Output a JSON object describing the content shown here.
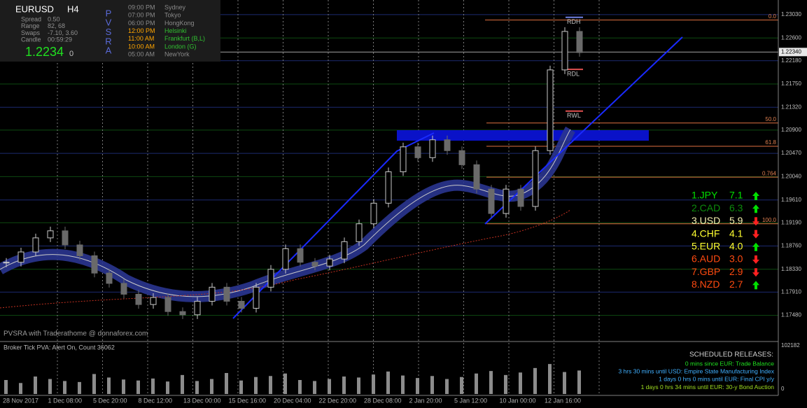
{
  "header": {
    "symbol": "EURUSD",
    "timeframe": "H4",
    "rows": [
      [
        "Spread",
        "0.50"
      ],
      [
        "Range",
        "82, 68"
      ],
      [
        "Swaps",
        "-7.10, 3.60"
      ],
      [
        "Candle",
        "00:59:29"
      ]
    ],
    "price": "1.2234",
    "price_suffix": "0"
  },
  "indicator_letters": [
    "P",
    "V",
    "S",
    "R",
    "A"
  ],
  "sessions": [
    {
      "time": "09:00 PM",
      "city": "Sydney",
      "active": false
    },
    {
      "time": "07:00 PM",
      "city": "Tokyo",
      "active": false
    },
    {
      "time": "06:00 PM",
      "city": "HongKong",
      "active": false
    },
    {
      "time": "12:00 PM",
      "city": "Helsinki",
      "active": true
    },
    {
      "time": "11:00 AM",
      "city": "Frankfurt  (B,L)",
      "active": true
    },
    {
      "time": "10:00 AM",
      "city": "London  (G)",
      "active": true
    },
    {
      "time": "05:00 AM",
      "city": "NewYork",
      "active": false
    }
  ],
  "chart_data": {
    "type": "candlestick",
    "up_color": "#c8c8c8",
    "down_color": "#6a6a6a",
    "values": [
      1.1846,
      1.1865,
      1.1891,
      1.1904,
      1.1878,
      1.1858,
      1.1826,
      1.1807,
      1.1787,
      1.1768,
      1.1781,
      1.1755,
      1.1749,
      1.1774,
      1.18,
      1.1774,
      1.1761,
      1.18,
      1.1833,
      1.1871,
      1.1846,
      1.1839,
      1.1852,
      1.1884,
      1.1917,
      1.1955,
      1.2013,
      1.2059,
      1.2039,
      1.2072,
      1.2052,
      1.2026,
      1.1981,
      1.1936,
      1.1981,
      1.1949,
      1.2052,
      1.2201,
      1.2272,
      1.2233
    ],
    "ylim": [
      1.1701,
      1.233
    ],
    "yticks": [
      {
        "value": 1.2303,
        "label": "1.23030"
      },
      {
        "value": 1.226,
        "label": "1.22600"
      },
      {
        "value": 1.2218,
        "label": "1.22180"
      },
      {
        "value": 1.2175,
        "label": "1.21750"
      },
      {
        "value": 1.2132,
        "label": "1.21320"
      },
      {
        "value": 1.209,
        "label": "1.20900"
      },
      {
        "value": 1.2047,
        "label": "1.20470"
      },
      {
        "value": 1.2004,
        "label": "1.20040"
      },
      {
        "value": 1.1961,
        "label": "1.19610"
      },
      {
        "value": 1.1919,
        "label": "1.19190"
      },
      {
        "value": 1.1876,
        "label": "1.18760"
      },
      {
        "value": 1.1833,
        "label": "1.18330"
      },
      {
        "value": 1.1791,
        "label": "1.17910"
      },
      {
        "value": 1.1748,
        "label": "1.17480"
      }
    ],
    "current_price": {
      "value": 1.2234,
      "label": "1.22340"
    },
    "xtick_labels": [
      "28 Nov 2017",
      "1 Dec 08:00",
      "5 Dec 20:00",
      "8 Dec 12:00",
      "13 Dec 00:00",
      "15 Dec 16:00",
      "20 Dec 04:00",
      "22 Dec 20:00",
      "28 Dec 08:00",
      "2 Jan 20:00",
      "5 Jan 12:00",
      "10 Jan 00:00",
      "12 Jan 16:00"
    ],
    "fib_levels": [
      {
        "label": "0.0",
        "price": 1.2293
      },
      {
        "label": "50.0",
        "price": 1.2103
      },
      {
        "label": "61.8",
        "price": 1.206
      },
      {
        "label": "0.764",
        "price": 1.2003
      },
      {
        "label": "100.0",
        "price": 1.1917
      }
    ],
    "range_levels": [
      {
        "label": "RDH",
        "price": 1.2298,
        "color": "#6f7fe0"
      },
      {
        "label": "RDL",
        "price": 1.2202,
        "color": "#e05050"
      },
      {
        "label": "RWL",
        "price": 1.2125,
        "color": "#e05050"
      }
    ],
    "footer": "PVSRA with Traderathome @ donnaforex.com"
  },
  "volume_panel": {
    "title": "Broker Tick PVA:   Alert On,   Count   36062",
    "ylim": [
      0,
      102182
    ],
    "yticks": [
      102182,
      0
    ],
    "color": "#8c8c8c",
    "values": [
      28000,
      22000,
      35000,
      30000,
      26000,
      24000,
      40000,
      33000,
      29000,
      27000,
      31000,
      25000,
      38000,
      26000,
      30000,
      42000,
      27000,
      34000,
      36000,
      41000,
      28000,
      26000,
      30000,
      35000,
      33000,
      39000,
      45000,
      37000,
      32000,
      36000,
      30000,
      34000,
      41000,
      46000,
      38000,
      43000,
      52000,
      60000,
      44000,
      47000
    ]
  },
  "strength": [
    {
      "label": "1.JPY",
      "value": 7.1,
      "color": "#00e000",
      "trend": "up"
    },
    {
      "label": "2.CAD",
      "value": 6.3,
      "color": "#0c8c0c",
      "trend": "up"
    },
    {
      "label": "3.USD",
      "value": 5.9,
      "color": "#f4f0b0",
      "trend": "down"
    },
    {
      "label": "4.CHF",
      "value": 4.1,
      "color": "#ffff30",
      "trend": "down"
    },
    {
      "label": "5.EUR",
      "value": 4.0,
      "value_label": "4.0",
      "color": "#ffff30",
      "trend": "up"
    },
    {
      "label": "6.AUD",
      "value": 3.0,
      "value_label": "3.0",
      "color": "#ff4a10",
      "trend": "down"
    },
    {
      "label": "7.GBP",
      "value": 2.9,
      "color": "#ff4a10",
      "trend": "down"
    },
    {
      "label": "8.NZD",
      "value": 2.7,
      "color": "#ff4a10",
      "trend": "up"
    }
  ],
  "releases": {
    "title": "SCHEDULED RELEASES:",
    "items": [
      {
        "text": "0 mins since EUR: Trade Balance",
        "color": "#20e020"
      },
      {
        "text": "3 hrs 30 mins until USD: Empire State Manufacturing Index",
        "color": "#40b0ff"
      },
      {
        "text": "1 days 0 hrs 0 mins until EUR: Final CPI y/y",
        "color": "#40b0ff"
      },
      {
        "text": "1 days 0 hrs 34 mins until EUR: 30-y Bond Auction",
        "color": "#a0e020"
      }
    ]
  }
}
